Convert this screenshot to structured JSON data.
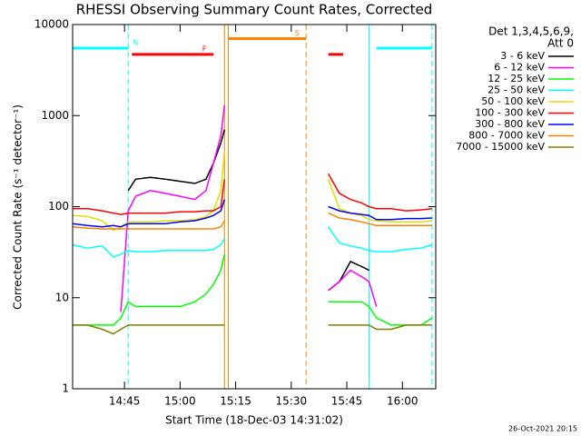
{
  "chart_data": {
    "type": "line",
    "title": "RHESSI Observing Summary Count Rates, Corrected",
    "xlabel": "Start Time (18-Dec-03 14:31:02)",
    "ylabel": "Corrected Count Rate (s⁻¹ detector⁻¹)",
    "legend_title": [
      "Det 1,3,4,5,6,9,",
      "Att 0"
    ],
    "footer": "26-Oct-2021 20:15",
    "log_y": true,
    "xlim": [
      "14:31",
      "16:09"
    ],
    "xticks": [
      "14:45",
      "15:00",
      "15:15",
      "15:30",
      "15:45",
      "16:00"
    ],
    "ylim": [
      1,
      10000
    ],
    "yticks": [
      1,
      10,
      100,
      1000,
      10000
    ],
    "x": [
      "14:31",
      "14:35",
      "14:39",
      "14:42",
      "14:44",
      "14:46",
      "14:48",
      "14:52",
      "14:56",
      "15:00",
      "15:04",
      "15:07",
      "15:09",
      "15:11",
      "15:12",
      "15:25",
      "15:38",
      "15:40",
      "15:43",
      "15:46",
      "15:49",
      "15:51",
      "15:53",
      "15:57",
      "16:01",
      "16:05",
      "16:08"
    ],
    "series": [
      {
        "name": "3 - 6 keV",
        "color": "#000000",
        "values": [
          null,
          null,
          null,
          null,
          null,
          150,
          200,
          210,
          200,
          190,
          180,
          200,
          300,
          500,
          700,
          null,
          null,
          12,
          15,
          25,
          22,
          20,
          null,
          null,
          null,
          null,
          null
        ]
      },
      {
        "name": "6 - 12 keV",
        "color": "#ff00ff",
        "values": [
          null,
          null,
          null,
          null,
          7,
          90,
          130,
          150,
          140,
          130,
          120,
          150,
          300,
          600,
          1300,
          null,
          null,
          12,
          15,
          20,
          17,
          15,
          8,
          null,
          null,
          null,
          null
        ]
      },
      {
        "name": "12 - 25 keV",
        "color": "#00ff00",
        "values": [
          5,
          5,
          5,
          5,
          6,
          9,
          8,
          8,
          8,
          8,
          9,
          11,
          14,
          20,
          30,
          null,
          null,
          9,
          9,
          9,
          9,
          8,
          6,
          5,
          5,
          5,
          6
        ]
      },
      {
        "name": "25 - 50 keV",
        "color": "#00ffff",
        "values": [
          38,
          35,
          37,
          28,
          30,
          33,
          32,
          32,
          33,
          33,
          33,
          33,
          34,
          38,
          45,
          null,
          null,
          60,
          40,
          37,
          35,
          33,
          32,
          32,
          34,
          35,
          38
        ]
      },
      {
        "name": "50 - 100 keV",
        "color": "#e0e000",
        "values": [
          80,
          78,
          70,
          55,
          60,
          68,
          68,
          68,
          70,
          70,
          72,
          78,
          90,
          150,
          400,
          null,
          null,
          200,
          95,
          85,
          80,
          72,
          70,
          68,
          68,
          68,
          70
        ]
      },
      {
        "name": "100 - 300 keV",
        "color": "#ff0000",
        "values": [
          95,
          95,
          90,
          85,
          82,
          85,
          85,
          85,
          85,
          88,
          88,
          90,
          90,
          100,
          200,
          null,
          null,
          230,
          140,
          120,
          110,
          100,
          95,
          95,
          90,
          92,
          95
        ]
      },
      {
        "name": "300 - 800 keV",
        "color": "#0000ff",
        "values": [
          65,
          62,
          60,
          62,
          60,
          65,
          65,
          65,
          65,
          68,
          70,
          75,
          80,
          90,
          120,
          null,
          null,
          100,
          90,
          85,
          82,
          80,
          72,
          72,
          74,
          74,
          75
        ]
      },
      {
        "name": "800 - 7000 keV",
        "color": "#ff8000",
        "values": [
          60,
          58,
          57,
          57,
          57,
          57,
          57,
          57,
          57,
          57,
          57,
          57,
          57,
          60,
          70,
          null,
          null,
          85,
          75,
          72,
          68,
          65,
          62,
          62,
          62,
          62,
          62
        ]
      },
      {
        "name": "7000 - 15000 keV",
        "color": "#808000",
        "values": [
          5,
          5,
          4.5,
          4,
          4.5,
          5,
          5,
          5,
          5,
          5,
          5,
          5,
          5,
          5,
          5,
          null,
          null,
          5,
          5,
          5,
          5,
          5,
          4.5,
          4.5,
          5,
          5,
          5
        ]
      }
    ],
    "flags": [
      {
        "label": "N",
        "color": "#00ffff",
        "value": 5500,
        "spans": [
          [
            "14:31",
            "14:46"
          ],
          [
            "15:53",
            "16:08"
          ]
        ]
      },
      {
        "label": "F",
        "color": "#ff0000",
        "value": 4700,
        "spans": [
          [
            "14:47",
            "15:09"
          ],
          [
            "15:40",
            "15:44"
          ]
        ]
      },
      {
        "label": "S",
        "color": "#ff8000",
        "value": 7000,
        "spans": [
          [
            "15:13",
            "15:34"
          ]
        ]
      }
    ],
    "vlines": [
      {
        "x": "14:31",
        "color": "#00ffff",
        "dashed": false
      },
      {
        "x": "14:46",
        "color": "#00ffff",
        "dashed": true
      },
      {
        "x": "15:12",
        "color": "#ff8000",
        "dashed": false
      },
      {
        "x": "15:13",
        "color": "#ff8000",
        "dashed": false
      },
      {
        "x": "15:34",
        "color": "#ff8000",
        "dashed": true
      },
      {
        "x": "15:51",
        "color": "#00ffff",
        "dashed": false
      },
      {
        "x": "16:08",
        "color": "#00ffff",
        "dashed": true
      }
    ]
  }
}
